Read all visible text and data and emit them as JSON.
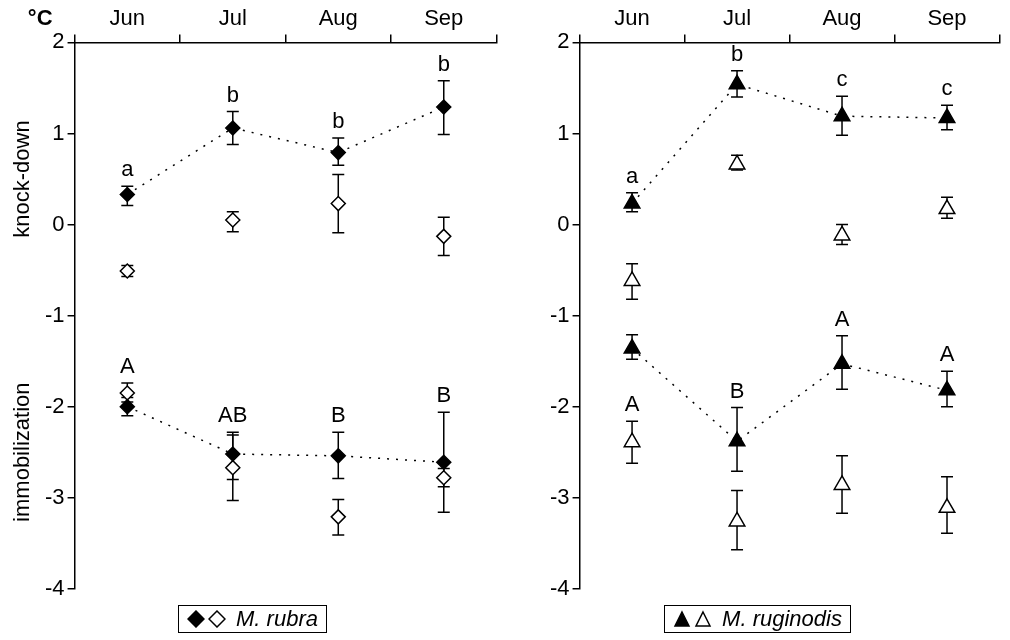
{
  "chart_data": [
    {
      "type": "scatter",
      "ylabel": "°C",
      "legend_title": "M. rubra",
      "categories": [
        "Jun",
        "Jul",
        "Aug",
        "Sep"
      ],
      "ylim": [
        -4,
        2
      ],
      "yticks": [
        -4,
        -3,
        -2,
        -1,
        0,
        1,
        2
      ],
      "series": [
        {
          "type": "line",
          "line_style": "dotted",
          "marker": "diamond",
          "color": "#000000",
          "values": [
            0.33,
            1.06,
            0.79,
            1.29
          ],
          "errors": [
            [
              0.21,
              0.42
            ],
            [
              0.88,
              1.24
            ],
            [
              0.65,
              0.95
            ],
            [
              0.99,
              1.58
            ]
          ]
        },
        {
          "type": "scatter",
          "marker": "diamond",
          "color": "#ffffff",
          "values": [
            -0.51,
            0.05,
            0.23,
            -0.13
          ],
          "errors": [
            [
              -0.57,
              -0.45
            ],
            [
              -0.08,
              0.14
            ],
            [
              -0.09,
              0.55
            ],
            [
              -0.34,
              0.08
            ]
          ]
        },
        {
          "type": "line",
          "line_style": "dotted",
          "marker": "diamond",
          "color": "#000000",
          "values": [
            -2.0,
            -2.52,
            -2.54,
            -2.61
          ],
          "errors": [
            [
              -2.1,
              -1.9
            ],
            [
              -2.8,
              -2.28
            ],
            [
              -2.79,
              -2.28
            ],
            [
              -3.16,
              -2.06
            ]
          ]
        },
        {
          "type": "scatter",
          "marker": "diamond",
          "color": "#ffffff",
          "values": [
            -1.85,
            -2.67,
            -3.21,
            -2.78
          ],
          "errors": [
            [
              -1.95,
              -1.74
            ],
            [
              -3.03,
              -2.31
            ],
            [
              -3.41,
              -3.02
            ],
            [
              -2.88,
              -2.68
            ]
          ]
        }
      ],
      "annotations": [
        "knock-down",
        "immobilization",
        {
          "text": "a",
          "x": "Jun",
          "y": 0.33
        },
        {
          "text": "b",
          "x": "Jul",
          "y": 1.06
        },
        {
          "text": "b",
          "x": "Aug",
          "y": 0.79
        },
        {
          "text": "b",
          "x": "Sep",
          "y": 1.29
        },
        {
          "text": "A",
          "x": "Jun",
          "y": -1.85
        },
        {
          "text": "AB",
          "x": "Jul",
          "y": -2.52
        },
        {
          "text": "B",
          "x": "Aug",
          "y": -2.54
        },
        {
          "text": "B",
          "x": "Sep",
          "y": -2.61
        }
      ]
    },
    {
      "type": "scatter",
      "legend_title": "M. ruginodis",
      "categories": [
        "Jun",
        "Jul",
        "Aug",
        "Sep"
      ],
      "ylim": [
        -4,
        2
      ],
      "yticks": [
        -4,
        -3,
        -2,
        -1,
        0,
        1,
        2
      ],
      "series": [
        {
          "type": "line",
          "line_style": "dotted",
          "marker": "triangle",
          "color": "#000000",
          "values": [
            0.23,
            1.54,
            1.19,
            1.17
          ],
          "errors": [
            [
              0.14,
              0.35
            ],
            [
              1.4,
              1.69
            ],
            [
              0.98,
              1.41
            ],
            [
              1.04,
              1.31
            ]
          ]
        },
        {
          "type": "scatter",
          "marker": "triangle",
          "color": "#ffffff",
          "values": [
            -0.62,
            0.66,
            -0.12,
            0.17
          ],
          "errors": [
            [
              -0.82,
              -0.43
            ],
            [
              0.6,
              0.76
            ],
            [
              -0.22,
              0.0
            ],
            [
              0.07,
              0.3
            ]
          ]
        },
        {
          "type": "line",
          "line_style": "dotted",
          "marker": "triangle",
          "color": "#000000",
          "values": [
            -1.36,
            -2.38,
            -1.53,
            -1.82
          ],
          "errors": [
            [
              -1.48,
              -1.21
            ],
            [
              -2.71,
              -2.01
            ],
            [
              -1.81,
              -1.22
            ],
            [
              -2.0,
              -1.61
            ]
          ]
        },
        {
          "type": "scatter",
          "marker": "triangle",
          "color": "#ffffff",
          "values": [
            -2.39,
            -3.26,
            -2.86,
            -3.11
          ],
          "errors": [
            [
              -2.62,
              -2.16
            ],
            [
              -3.57,
              -2.92
            ],
            [
              -3.17,
              -2.54
            ],
            [
              -3.39,
              -2.77
            ]
          ]
        }
      ],
      "annotations": [
        {
          "text": "a",
          "x": "Jun",
          "y": 0.23
        },
        {
          "text": "b",
          "x": "Jul",
          "y": 1.54
        },
        {
          "text": "c",
          "x": "Aug",
          "y": 1.19
        },
        {
          "text": "c",
          "x": "Sep",
          "y": 1.17
        },
        {
          "text": "A",
          "x": "Jun",
          "y": -2.39
        },
        {
          "text": "B",
          "x": "Jul",
          "y": -2.38
        },
        {
          "text": "A",
          "x": "Aug",
          "y": -1.53
        },
        {
          "text": "A",
          "x": "Sep",
          "y": -1.82
        }
      ]
    }
  ]
}
